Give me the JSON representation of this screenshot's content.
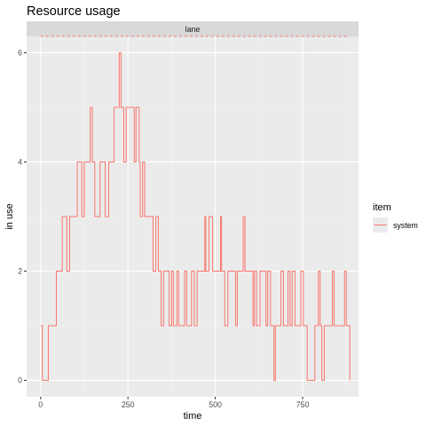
{
  "chart_data": {
    "type": "line",
    "step": true,
    "title": "Resource usage",
    "facet_label": "lane",
    "xlabel": "time",
    "ylabel": "in use",
    "xlim": [
      -40,
      910
    ],
    "ylim": [
      -0.3,
      6.3
    ],
    "x_ticks": [
      0,
      250,
      500,
      750
    ],
    "y_ticks": [
      0,
      2,
      4,
      6
    ],
    "grid": true,
    "capacity_line": 6.3,
    "legend": {
      "title": "item",
      "position": "right"
    },
    "series": [
      {
        "name": "system",
        "color": "#F8766D",
        "points": [
          [
            0,
            1
          ],
          [
            5,
            0
          ],
          [
            22,
            1
          ],
          [
            45,
            2
          ],
          [
            62,
            3
          ],
          [
            75,
            2
          ],
          [
            83,
            3
          ],
          [
            105,
            4
          ],
          [
            118,
            3
          ],
          [
            125,
            4
          ],
          [
            135,
            4
          ],
          [
            142,
            5
          ],
          [
            148,
            4
          ],
          [
            155,
            3
          ],
          [
            170,
            4
          ],
          [
            185,
            3
          ],
          [
            195,
            4
          ],
          [
            210,
            5
          ],
          [
            225,
            6
          ],
          [
            230,
            5
          ],
          [
            238,
            4
          ],
          [
            245,
            5
          ],
          [
            258,
            5
          ],
          [
            268,
            4
          ],
          [
            273,
            5
          ],
          [
            282,
            4
          ],
          [
            285,
            3
          ],
          [
            292,
            4
          ],
          [
            298,
            3
          ],
          [
            318,
            3
          ],
          [
            322,
            2
          ],
          [
            330,
            3
          ],
          [
            337,
            2
          ],
          [
            345,
            1
          ],
          [
            352,
            2
          ],
          [
            368,
            1
          ],
          [
            375,
            2
          ],
          [
            380,
            1
          ],
          [
            390,
            2
          ],
          [
            395,
            1
          ],
          [
            408,
            1
          ],
          [
            412,
            2
          ],
          [
            418,
            1
          ],
          [
            432,
            2
          ],
          [
            440,
            1
          ],
          [
            448,
            2
          ],
          [
            470,
            3
          ],
          [
            473,
            2
          ],
          [
            482,
            3
          ],
          [
            492,
            2
          ],
          [
            515,
            3
          ],
          [
            518,
            2
          ],
          [
            527,
            1
          ],
          [
            536,
            2
          ],
          [
            558,
            1
          ],
          [
            563,
            2
          ],
          [
            580,
            3
          ],
          [
            585,
            2
          ],
          [
            608,
            1
          ],
          [
            612,
            2
          ],
          [
            618,
            1
          ],
          [
            628,
            2
          ],
          [
            645,
            1
          ],
          [
            650,
            2
          ],
          [
            658,
            1
          ],
          [
            668,
            0
          ],
          [
            672,
            1
          ],
          [
            688,
            2
          ],
          [
            695,
            1
          ],
          [
            708,
            2
          ],
          [
            714,
            1
          ],
          [
            720,
            2
          ],
          [
            728,
            1
          ],
          [
            745,
            2
          ],
          [
            752,
            1
          ],
          [
            763,
            0
          ],
          [
            785,
            1
          ],
          [
            795,
            2
          ],
          [
            800,
            1
          ],
          [
            805,
            0
          ],
          [
            812,
            1
          ],
          [
            828,
            1
          ],
          [
            835,
            2
          ],
          [
            840,
            1
          ],
          [
            865,
            1
          ],
          [
            870,
            2
          ],
          [
            875,
            1
          ],
          [
            885,
            0
          ]
        ]
      }
    ]
  }
}
